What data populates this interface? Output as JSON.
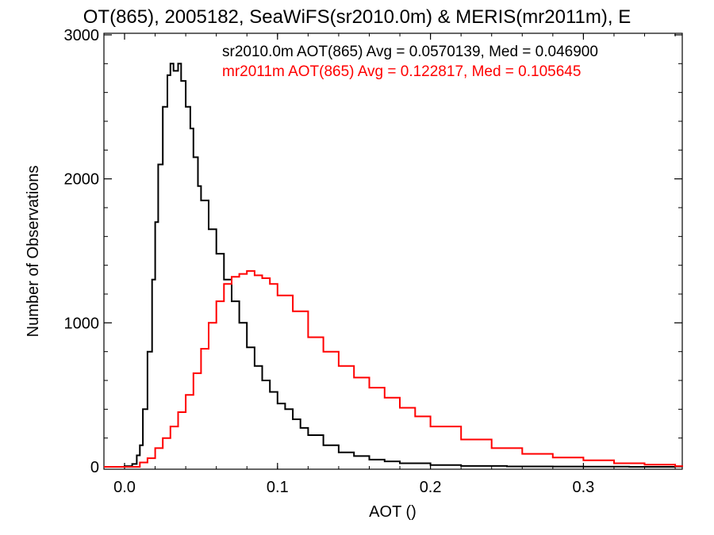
{
  "chart_data": {
    "type": "line",
    "title": "OT(865), 2005182, SeaWiFS(sr2010.0m) & MERIS(mr2011m), E",
    "xlabel": "AOT ()",
    "ylabel": "Number of Observations",
    "xlim": [
      -0.02,
      0.37
    ],
    "ylim": [
      0,
      3000
    ],
    "xticks": [
      0.0,
      0.1,
      0.2,
      0.3
    ],
    "xtick_labels": [
      "0.0",
      "0.1",
      "0.2",
      "0.3"
    ],
    "yticks": [
      0,
      1000,
      2000,
      3000
    ],
    "ytick_labels": [
      "0",
      "1000",
      "2000",
      "3000"
    ],
    "grid": false,
    "annotations": [
      {
        "text": "sr2010.0m AOT(865) Avg = 0.0570139, Med = 0.046900",
        "color": "#000000"
      },
      {
        "text": "mr2011m AOT(865) Avg = 0.122817, Med = 0.105645",
        "color": "#ff0000"
      }
    ],
    "series": [
      {
        "color": "#000000",
        "x": [
          -0.015,
          0.0,
          0.005,
          0.008,
          0.01,
          0.012,
          0.015,
          0.018,
          0.02,
          0.022,
          0.025,
          0.028,
          0.03,
          0.032,
          0.035,
          0.037,
          0.04,
          0.043,
          0.045,
          0.048,
          0.05,
          0.055,
          0.06,
          0.065,
          0.07,
          0.075,
          0.08,
          0.085,
          0.09,
          0.095,
          0.1,
          0.105,
          0.11,
          0.115,
          0.12,
          0.13,
          0.14,
          0.15,
          0.16,
          0.17,
          0.18,
          0.2,
          0.22,
          0.25,
          0.28,
          0.3,
          0.33,
          0.36
        ],
        "y": [
          0,
          5,
          20,
          80,
          150,
          400,
          800,
          1300,
          1700,
          2100,
          2500,
          2720,
          2800,
          2750,
          2800,
          2680,
          2500,
          2350,
          2150,
          1950,
          1850,
          1650,
          1480,
          1300,
          1150,
          1000,
          830,
          700,
          600,
          520,
          440,
          400,
          330,
          270,
          220,
          150,
          100,
          75,
          50,
          38,
          25,
          12,
          6,
          3,
          2,
          1,
          0,
          0
        ]
      },
      {
        "color": "#ff0000",
        "x": [
          -0.015,
          0.0,
          0.01,
          0.015,
          0.02,
          0.025,
          0.03,
          0.035,
          0.04,
          0.045,
          0.05,
          0.055,
          0.06,
          0.065,
          0.07,
          0.075,
          0.08,
          0.085,
          0.09,
          0.095,
          0.1,
          0.11,
          0.12,
          0.13,
          0.14,
          0.15,
          0.16,
          0.17,
          0.18,
          0.19,
          0.2,
          0.22,
          0.24,
          0.26,
          0.28,
          0.3,
          0.32,
          0.34,
          0.36,
          0.37
        ],
        "y": [
          0,
          0,
          30,
          60,
          130,
          200,
          280,
          380,
          500,
          650,
          820,
          1000,
          1150,
          1270,
          1320,
          1340,
          1360,
          1330,
          1310,
          1270,
          1190,
          1080,
          900,
          800,
          700,
          620,
          550,
          480,
          410,
          350,
          280,
          190,
          130,
          90,
          65,
          45,
          25,
          15,
          5,
          0
        ]
      }
    ]
  }
}
